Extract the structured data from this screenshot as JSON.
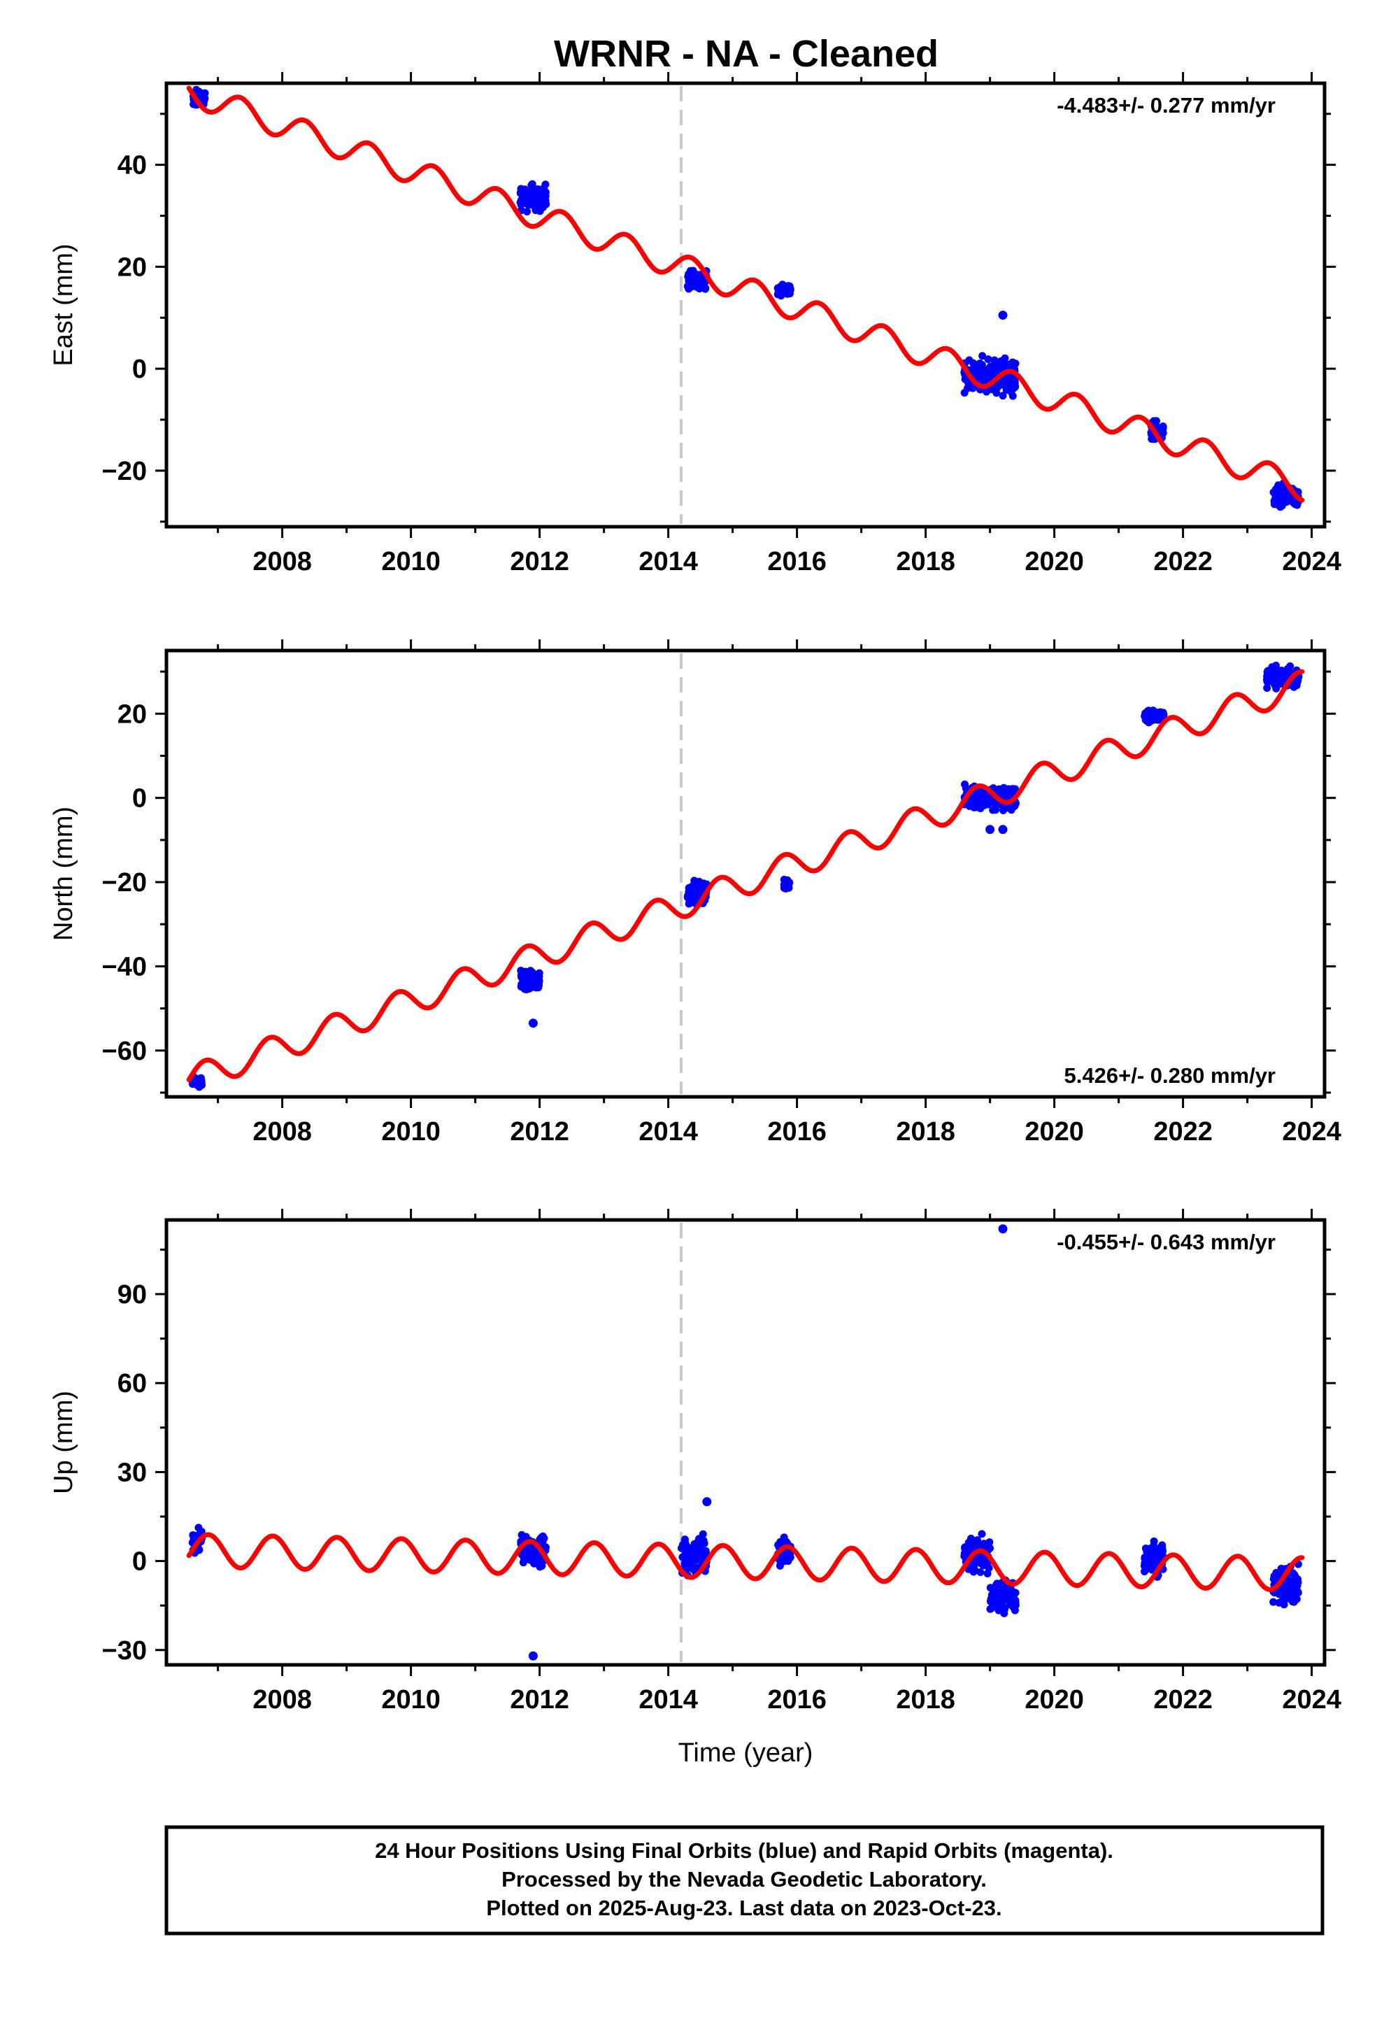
{
  "figure": {
    "title": "WRNR  - NA - Cleaned",
    "footer": [
      "24 Hour Positions Using Final Orbits (blue) and Rapid Orbits (magenta).",
      "Processed by the Nevada Geodetic Laboratory.",
      "Plotted on 2025-Aug-23. Last data on 2023-Oct-23."
    ],
    "colors": {
      "points": "#0000ff",
      "model": "#ff0000",
      "break_line": "#c8c8c8",
      "frame": "#000000"
    }
  },
  "chart_data": [
    {
      "type": "scatter",
      "name": "east",
      "ylabel": "East (mm)",
      "xlabel": "",
      "rate": "-4.483+/- 0.277 mm/yr",
      "rate_position": "top-right",
      "xlim": [
        2006.2,
        2024.2
      ],
      "ylim": [
        -31,
        56
      ],
      "x_ticks": [
        2008,
        2010,
        2012,
        2014,
        2016,
        2018,
        2020,
        2022,
        2024
      ],
      "y_ticks": [
        -20,
        0,
        20,
        40
      ],
      "break_year": 2014.2,
      "model": {
        "intercept_year": 2018.7,
        "intercept_value": -0.2,
        "rate": -4.483,
        "amplitude": 2.5,
        "phase_year": 0.1
      },
      "clusters": [
        {
          "start": 2006.6,
          "end": 2006.8,
          "center": 53,
          "spread": 1.5
        },
        {
          "start": 2011.7,
          "end": 2012.1,
          "center": 33.5,
          "spread": 2.3
        },
        {
          "start": 2014.3,
          "end": 2014.6,
          "center": 17.5,
          "spread": 1.6
        },
        {
          "start": 2015.7,
          "end": 2015.9,
          "center": 15.5,
          "spread": 1.2
        },
        {
          "start": 2018.6,
          "end": 2019.4,
          "center": -1.5,
          "spread": 3.0
        },
        {
          "start": 2021.5,
          "end": 2021.7,
          "center": -12.5,
          "spread": 1.8
        },
        {
          "start": 2023.4,
          "end": 2023.8,
          "center": -25,
          "spread": 2.0
        }
      ],
      "outliers": [
        {
          "x": 2019.2,
          "y": 10.5
        }
      ]
    },
    {
      "type": "scatter",
      "name": "north",
      "ylabel": "North (mm)",
      "xlabel": "",
      "rate": "5.426+/- 0.280 mm/yr",
      "rate_position": "bottom-right",
      "xlim": [
        2006.2,
        2024.2
      ],
      "ylim": [
        -71,
        35
      ],
      "x_ticks": [
        2008,
        2010,
        2012,
        2014,
        2016,
        2018,
        2020,
        2022,
        2024
      ],
      "y_ticks": [
        -60,
        -40,
        -20,
        0,
        20
      ],
      "break_year": 2014.2,
      "model": {
        "intercept_year": 2018.7,
        "intercept_value": -1.0,
        "rate": 5.426,
        "amplitude": 3.2,
        "phase_year": 0.55
      },
      "clusters": [
        {
          "start": 2006.6,
          "end": 2006.75,
          "center": -67.5,
          "spread": 1.0
        },
        {
          "start": 2011.7,
          "end": 2012.0,
          "center": -43.5,
          "spread": 2.0
        },
        {
          "start": 2014.3,
          "end": 2014.6,
          "center": -22.5,
          "spread": 2.5
        },
        {
          "start": 2015.8,
          "end": 2015.9,
          "center": -20.5,
          "spread": 1.2
        },
        {
          "start": 2018.6,
          "end": 2019.4,
          "center": 0,
          "spread": 2.8
        },
        {
          "start": 2021.4,
          "end": 2021.7,
          "center": 19.5,
          "spread": 1.2
        },
        {
          "start": 2023.3,
          "end": 2023.8,
          "center": 28.5,
          "spread": 2.0
        }
      ],
      "outliers": [
        {
          "x": 2011.9,
          "y": -53.5
        },
        {
          "x": 2019.0,
          "y": -7.5
        },
        {
          "x": 2019.2,
          "y": -7.5
        }
      ]
    },
    {
      "type": "scatter",
      "name": "up",
      "ylabel": "Up (mm)",
      "xlabel": "Time (year)",
      "rate": "-0.455+/- 0.643 mm/yr",
      "rate_position": "top-right",
      "xlim": [
        2006.2,
        2024.2
      ],
      "ylim": [
        -35,
        115
      ],
      "x_ticks": [
        2008,
        2010,
        2012,
        2014,
        2016,
        2018,
        2020,
        2022,
        2024
      ],
      "y_ticks": [
        -30,
        0,
        30,
        60,
        90
      ],
      "break_year": 2014.2,
      "model": {
        "intercept_year": 2018.7,
        "intercept_value": -2.0,
        "rate": -0.455,
        "amplitude": 5.5,
        "phase_year": 0.6
      },
      "clusters": [
        {
          "start": 2006.6,
          "end": 2006.75,
          "center": 7,
          "spread": 3.5
        },
        {
          "start": 2011.7,
          "end": 2012.1,
          "center": 4,
          "spread": 5.0
        },
        {
          "start": 2014.2,
          "end": 2014.6,
          "center": 1,
          "spread": 6.5
        },
        {
          "start": 2015.7,
          "end": 2015.9,
          "center": 3,
          "spread": 3.5
        },
        {
          "start": 2018.6,
          "end": 2019.0,
          "center": 2,
          "spread": 5.0
        },
        {
          "start": 2019.0,
          "end": 2019.4,
          "center": -12,
          "spread": 5.5
        },
        {
          "start": 2021.4,
          "end": 2021.7,
          "center": 1,
          "spread": 5.0
        },
        {
          "start": 2023.4,
          "end": 2023.8,
          "center": -8,
          "spread": 6.0
        }
      ],
      "outliers": [
        {
          "x": 2019.2,
          "y": 112
        },
        {
          "x": 2011.9,
          "y": -32
        },
        {
          "x": 2014.6,
          "y": 20
        }
      ]
    }
  ]
}
